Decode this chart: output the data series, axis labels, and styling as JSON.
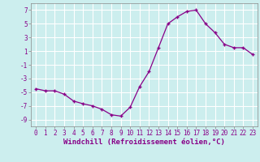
{
  "x": [
    0,
    1,
    2,
    3,
    4,
    5,
    6,
    7,
    8,
    9,
    10,
    11,
    12,
    13,
    14,
    15,
    16,
    17,
    18,
    19,
    20,
    21,
    22,
    23
  ],
  "y": [
    -4.5,
    -4.8,
    -4.8,
    -5.3,
    -6.3,
    -6.7,
    -7.0,
    -7.5,
    -8.3,
    -8.5,
    -7.2,
    -4.2,
    -2.0,
    1.5,
    5.0,
    6.0,
    6.8,
    7.0,
    5.0,
    3.7,
    2.0,
    1.5,
    1.5,
    0.5
  ],
  "line_color": "#880088",
  "marker": "+",
  "marker_size": 3.5,
  "background_color": "#cceeee",
  "grid_color": "#ffffff",
  "xlabel": "Windchill (Refroidissement éolien,°C)",
  "xlabel_fontsize": 6.5,
  "xlim": [
    -0.5,
    23.5
  ],
  "ylim": [
    -10,
    8
  ],
  "yticks": [
    -9,
    -7,
    -5,
    -3,
    -1,
    1,
    3,
    5,
    7
  ],
  "xticks": [
    0,
    1,
    2,
    3,
    4,
    5,
    6,
    7,
    8,
    9,
    10,
    11,
    12,
    13,
    14,
    15,
    16,
    17,
    18,
    19,
    20,
    21,
    22,
    23
  ],
  "tick_fontsize": 5.5,
  "ylabel_fontsize": 6.5
}
